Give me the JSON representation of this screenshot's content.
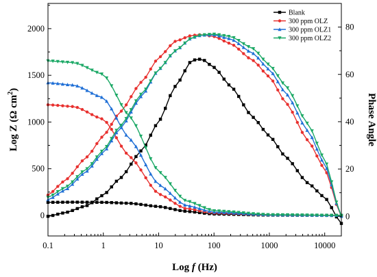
{
  "chart_data": {
    "type": "line",
    "xlabel": "Log f (Hz)",
    "xlabel_parts": [
      "Log ",
      "f",
      " (Hz)"
    ],
    "ylabel_left": "Log Z (Ω cm²)",
    "ylabel_left_parts": [
      "Log Z (Ω cm",
      "2",
      ")"
    ],
    "ylabel_right": "Phase Angle",
    "x_scale": "log",
    "xlim": [
      0.1,
      20000
    ],
    "ylim_left": [
      -220,
      2270
    ],
    "ylim_right": [
      -8.3,
      90
    ],
    "x_ticks": [
      {
        "value": 0.1,
        "label": "0.1"
      },
      {
        "value": 1,
        "label": "1"
      },
      {
        "value": 10,
        "label": "10"
      },
      {
        "value": 100,
        "label": "100"
      },
      {
        "value": 1000,
        "label": "1000"
      },
      {
        "value": 10000,
        "label": "10000"
      }
    ],
    "y_left_ticks": [
      {
        "value": 0,
        "label": "0"
      },
      {
        "value": 500,
        "label": "500"
      },
      {
        "value": 1000,
        "label": "1000"
      },
      {
        "value": 1500,
        "label": "1500"
      },
      {
        "value": 2000,
        "label": "2000"
      }
    ],
    "y_right_ticks": [
      {
        "value": 0,
        "label": "0"
      },
      {
        "value": 20,
        "label": "20"
      },
      {
        "value": 40,
        "label": "40"
      },
      {
        "value": 60,
        "label": "60"
      },
      {
        "value": 80,
        "label": "80"
      }
    ],
    "grid": false,
    "legend_position": "top-right",
    "series": [
      {
        "name": "Blank",
        "color": "#000000",
        "marker": "square",
        "impedance": {
          "f": [
            0.1,
            0.3,
            1,
            3,
            10,
            30,
            100,
            1000,
            20000
          ],
          "z": [
            140,
            142,
            140,
            130,
            95,
            45,
            15,
            3,
            0
          ]
        },
        "phase": {
          "f": [
            0.1,
            0.2,
            0.5,
            1,
            2,
            5,
            10,
            20,
            40,
            60,
            100,
            200,
            500,
            1000,
            2000,
            5000,
            10000,
            20000
          ],
          "p": [
            0,
            1.5,
            4.5,
            9,
            16,
            28,
            40,
            55,
            66,
            66.5,
            63,
            55,
            42,
            34,
            25,
            14,
            8,
            -3
          ]
        }
      },
      {
        "name": "300 ppm OLZ",
        "color": "#e8312f",
        "marker": "circle",
        "impedance": {
          "f": [
            0.1,
            0.3,
            1,
            3,
            10,
            30,
            100,
            1000,
            20000
          ],
          "z": [
            1185,
            1165,
            1030,
            630,
            230,
            75,
            25,
            5,
            0
          ]
        },
        "phase": {
          "f": [
            0.1,
            0.2,
            0.5,
            1,
            2,
            5,
            10,
            20,
            40,
            60,
            100,
            200,
            500,
            1000,
            2000,
            5000,
            10000,
            20000
          ],
          "p": [
            9,
            15,
            25,
            34,
            44,
            57,
            67,
            74,
            76.5,
            76.8,
            76,
            73,
            66,
            59,
            48,
            32,
            20,
            0
          ]
        }
      },
      {
        "name": "300 ppm OLZ1",
        "color": "#1f6fd6",
        "marker": "triangle",
        "impedance": {
          "f": [
            0.1,
            0.3,
            1,
            3,
            10,
            30,
            100,
            1000,
            20000
          ],
          "z": [
            1420,
            1395,
            1260,
            820,
            330,
            110,
            35,
            6,
            0
          ]
        },
        "phase": {
          "f": [
            0.1,
            0.2,
            0.5,
            1,
            2,
            5,
            10,
            20,
            40,
            60,
            100,
            200,
            500,
            1000,
            2000,
            5000,
            10000,
            20000
          ],
          "p": [
            7,
            11,
            19,
            27,
            37,
            51,
            62,
            70,
            75.5,
            76.6,
            76.7,
            75,
            69,
            62,
            52,
            36,
            22,
            0
          ]
        }
      },
      {
        "name": "300 ppm OLZ2",
        "color": "#1aa865",
        "marker": "triangle-down",
        "impedance": {
          "f": [
            0.1,
            0.3,
            1,
            3,
            10,
            30,
            100,
            1000,
            20000
          ],
          "z": [
            1655,
            1635,
            1510,
            1060,
            470,
            160,
            50,
            8,
            0
          ]
        },
        "phase": {
          "f": [
            0.1,
            0.2,
            0.5,
            1,
            2,
            5,
            10,
            20,
            40,
            60,
            100,
            200,
            500,
            1000,
            2000,
            5000,
            10000,
            20000
          ],
          "p": [
            8,
            12,
            20,
            28,
            38,
            52,
            62,
            70,
            75.5,
            76.7,
            77,
            76,
            71,
            64,
            55,
            39,
            24,
            0
          ]
        }
      }
    ]
  }
}
